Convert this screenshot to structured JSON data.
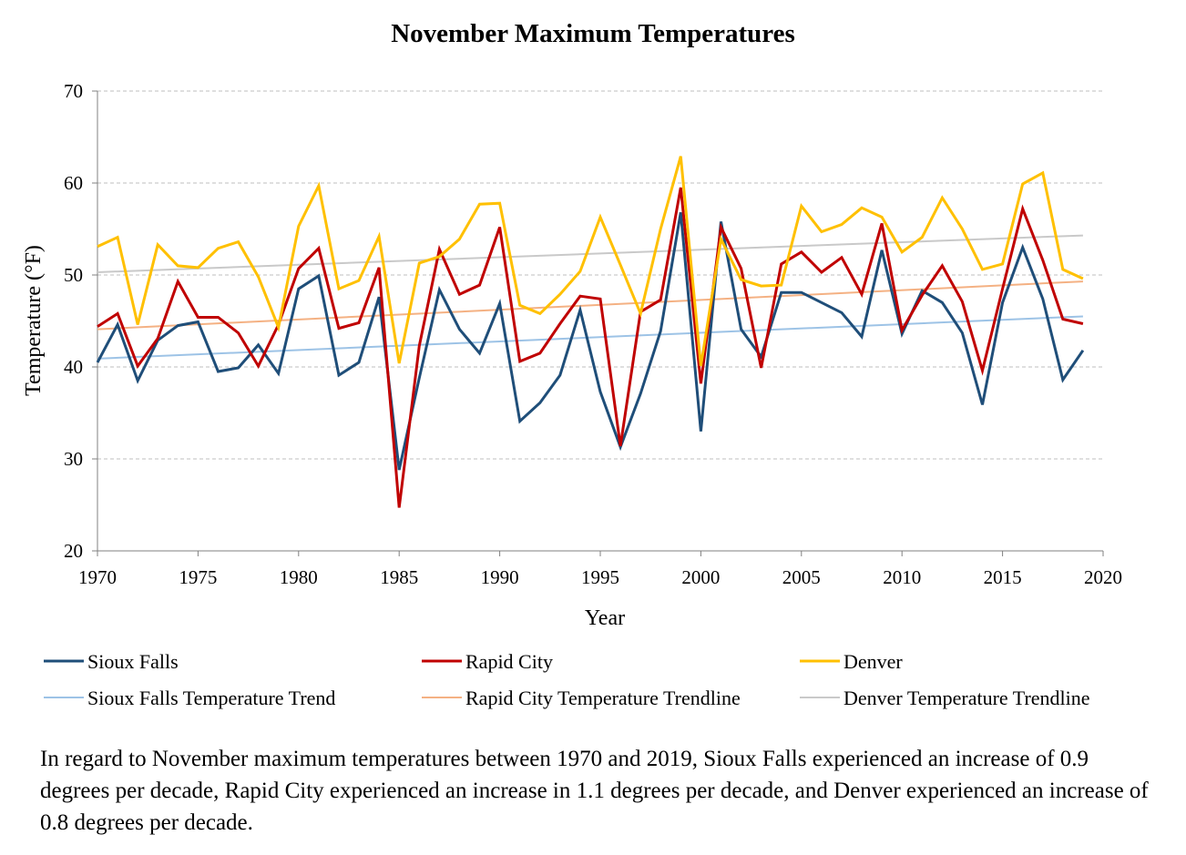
{
  "chart_data": {
    "type": "line",
    "title": "November Maximum Temperatures",
    "xlabel": "Year",
    "ylabel": "Temperature (°F)",
    "xlim": [
      1970,
      2020
    ],
    "ylim": [
      20,
      70
    ],
    "x_ticks": [
      1970,
      1975,
      1980,
      1985,
      1990,
      1995,
      2000,
      2005,
      2010,
      2015,
      2020
    ],
    "y_ticks": [
      20,
      30,
      40,
      50,
      60,
      70
    ],
    "grid": "horizontal-dashed",
    "legend_position": "bottom",
    "x": [
      1970,
      1971,
      1972,
      1973,
      1974,
      1975,
      1976,
      1977,
      1978,
      1979,
      1980,
      1981,
      1982,
      1983,
      1984,
      1985,
      1986,
      1987,
      1988,
      1989,
      1990,
      1991,
      1992,
      1993,
      1994,
      1995,
      1996,
      1997,
      1998,
      1999,
      2000,
      2001,
      2002,
      2003,
      2004,
      2005,
      2006,
      2007,
      2008,
      2009,
      2010,
      2011,
      2012,
      2013,
      2014,
      2015,
      2016,
      2017,
      2018,
      2019
    ],
    "series": [
      {
        "name": "Sioux Falls",
        "color": "#1f4e79",
        "kind": "data",
        "values": [
          40.5,
          44.6,
          38.5,
          42.9,
          44.5,
          44.9,
          39.5,
          39.9,
          42.4,
          39.3,
          48.5,
          49.9,
          39.1,
          40.5,
          47.6,
          28.8,
          38.8,
          48.4,
          44.1,
          41.5,
          46.9,
          34.1,
          36.1,
          39.1,
          46.2,
          37.3,
          31.3,
          37.1,
          43.9,
          56.8,
          33.0,
          55.8,
          44.1,
          41.1,
          48.1,
          48.1,
          47.0,
          45.9,
          43.3,
          52.7,
          43.6,
          48.3,
          47.0,
          43.7,
          35.9,
          47.0,
          53.0,
          47.4,
          38.6,
          41.8
        ]
      },
      {
        "name": "Rapid City",
        "color": "#c00000",
        "kind": "data",
        "values": [
          44.4,
          45.8,
          40.1,
          43.1,
          49.3,
          45.4,
          45.4,
          43.7,
          40.1,
          44.6,
          50.7,
          52.9,
          44.2,
          44.8,
          50.8,
          24.7,
          42.3,
          52.8,
          47.9,
          48.9,
          55.2,
          40.6,
          41.5,
          44.7,
          47.7,
          47.4,
          31.4,
          46.0,
          47.3,
          59.5,
          38.2,
          55.2,
          50.7,
          39.9,
          51.2,
          52.5,
          50.3,
          51.9,
          47.9,
          55.6,
          44.0,
          47.8,
          51.0,
          47.1,
          39.6,
          48.5,
          57.2,
          51.6,
          45.2,
          44.7
        ]
      },
      {
        "name": "Denver",
        "color": "#ffc000",
        "kind": "data",
        "values": [
          53.1,
          54.1,
          44.6,
          53.3,
          51.0,
          50.8,
          52.9,
          53.6,
          49.8,
          44.3,
          55.3,
          59.7,
          48.5,
          49.4,
          54.2,
          40.4,
          51.3,
          52.0,
          53.9,
          57.7,
          57.8,
          46.7,
          45.8,
          47.9,
          50.4,
          56.3,
          51.1,
          45.8,
          55.0,
          62.9,
          40.1,
          53.9,
          49.5,
          48.8,
          48.9,
          57.5,
          54.7,
          55.5,
          57.3,
          56.3,
          52.5,
          54.1,
          58.4,
          55.0,
          50.6,
          51.2,
          59.9,
          61.1,
          50.6,
          49.6
        ]
      },
      {
        "name": "Sioux Falls Temperature Trend",
        "color": "#9dc3e6",
        "kind": "trend",
        "start": [
          1970,
          40.9
        ],
        "end": [
          2019,
          45.5
        ]
      },
      {
        "name": "Rapid City Temperature Trendline",
        "color": "#f4b183",
        "kind": "trend",
        "start": [
          1970,
          44.1
        ],
        "end": [
          2019,
          49.3
        ]
      },
      {
        "name": "Denver Temperature Trendline",
        "color": "#c9c9c9",
        "kind": "trend",
        "start": [
          1970,
          50.3
        ],
        "end": [
          2019,
          54.3
        ]
      }
    ]
  },
  "caption": "In regard to November maximum temperatures between 1970 and 2019, Sioux Falls experienced an increase of 0.9 degrees per decade, Rapid City experienced an increase in 1.1 degrees per decade, and Denver experienced an increase of 0.8 degrees per decade."
}
